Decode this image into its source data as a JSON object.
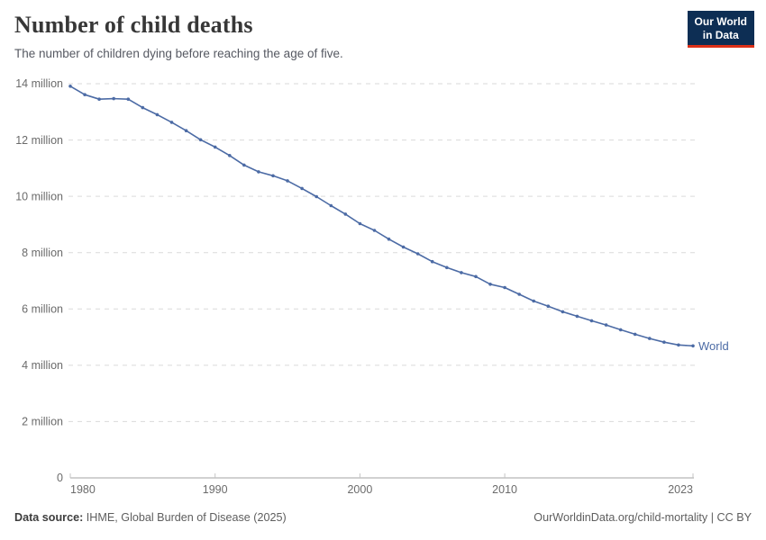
{
  "header": {
    "title": "Number of child deaths",
    "subtitle": "The number of children dying before reaching the age of five.",
    "logo": {
      "line1": "Our World",
      "line2": "in Data"
    }
  },
  "chart_data": {
    "type": "line",
    "title": "Number of child deaths",
    "subtitle": "The number of children dying before reaching the age of five.",
    "unit": "million",
    "xlim": [
      1980,
      2023
    ],
    "ylim": [
      0,
      14
    ],
    "grid": "horizontal-dashed",
    "legend_position": "end-of-line-label",
    "series": [
      {
        "name": "World",
        "x": [
          1980,
          1981,
          1982,
          1983,
          1984,
          1985,
          1986,
          1987,
          1988,
          1989,
          1990,
          1991,
          1992,
          1993,
          1994,
          1995,
          1996,
          1997,
          1998,
          1999,
          2000,
          2001,
          2002,
          2003,
          2004,
          2005,
          2006,
          2007,
          2008,
          2009,
          2010,
          2011,
          2012,
          2013,
          2014,
          2015,
          2016,
          2017,
          2018,
          2019,
          2020,
          2021,
          2022,
          2023
        ],
        "values": [
          13.91,
          13.61,
          13.45,
          13.47,
          13.45,
          13.15,
          12.9,
          12.63,
          12.33,
          12.01,
          11.75,
          11.45,
          11.11,
          10.87,
          10.73,
          10.55,
          10.28,
          9.99,
          9.67,
          9.37,
          9.03,
          8.79,
          8.48,
          8.2,
          7.96,
          7.68,
          7.47,
          7.29,
          7.15,
          6.88,
          6.76,
          6.52,
          6.28,
          6.1,
          5.9,
          5.74,
          5.58,
          5.43,
          5.26,
          5.1,
          4.95,
          4.82,
          4.72,
          4.69
        ]
      }
    ],
    "x_ticks": [
      {
        "value": 1980,
        "label": "1980"
      },
      {
        "value": 1990,
        "label": "1990"
      },
      {
        "value": 2000,
        "label": "2000"
      },
      {
        "value": 2010,
        "label": "2010"
      },
      {
        "value": 2023,
        "label": "2023"
      }
    ],
    "y_ticks": [
      {
        "value": 0,
        "label": "0"
      },
      {
        "value": 2,
        "label": "2 million"
      },
      {
        "value": 4,
        "label": "4 million"
      },
      {
        "value": 6,
        "label": "6 million"
      },
      {
        "value": 8,
        "label": "8 million"
      },
      {
        "value": 10,
        "label": "10 million"
      },
      {
        "value": 12,
        "label": "12 million"
      },
      {
        "value": 14,
        "label": "14 million"
      }
    ],
    "colors": {
      "line": "#4C6BA5",
      "grid": "#dadada",
      "axis": "#a3a3a3",
      "tick_label": "#6b6b6b",
      "logo_bg": "#0d2e54",
      "logo_stripe": "#dc3018"
    }
  },
  "footer": {
    "source_label": "Data source:",
    "source_text": "IHME, Global Burden of Disease (2025)",
    "link_text": "OurWorldinData.org/child-mortality | CC BY"
  }
}
